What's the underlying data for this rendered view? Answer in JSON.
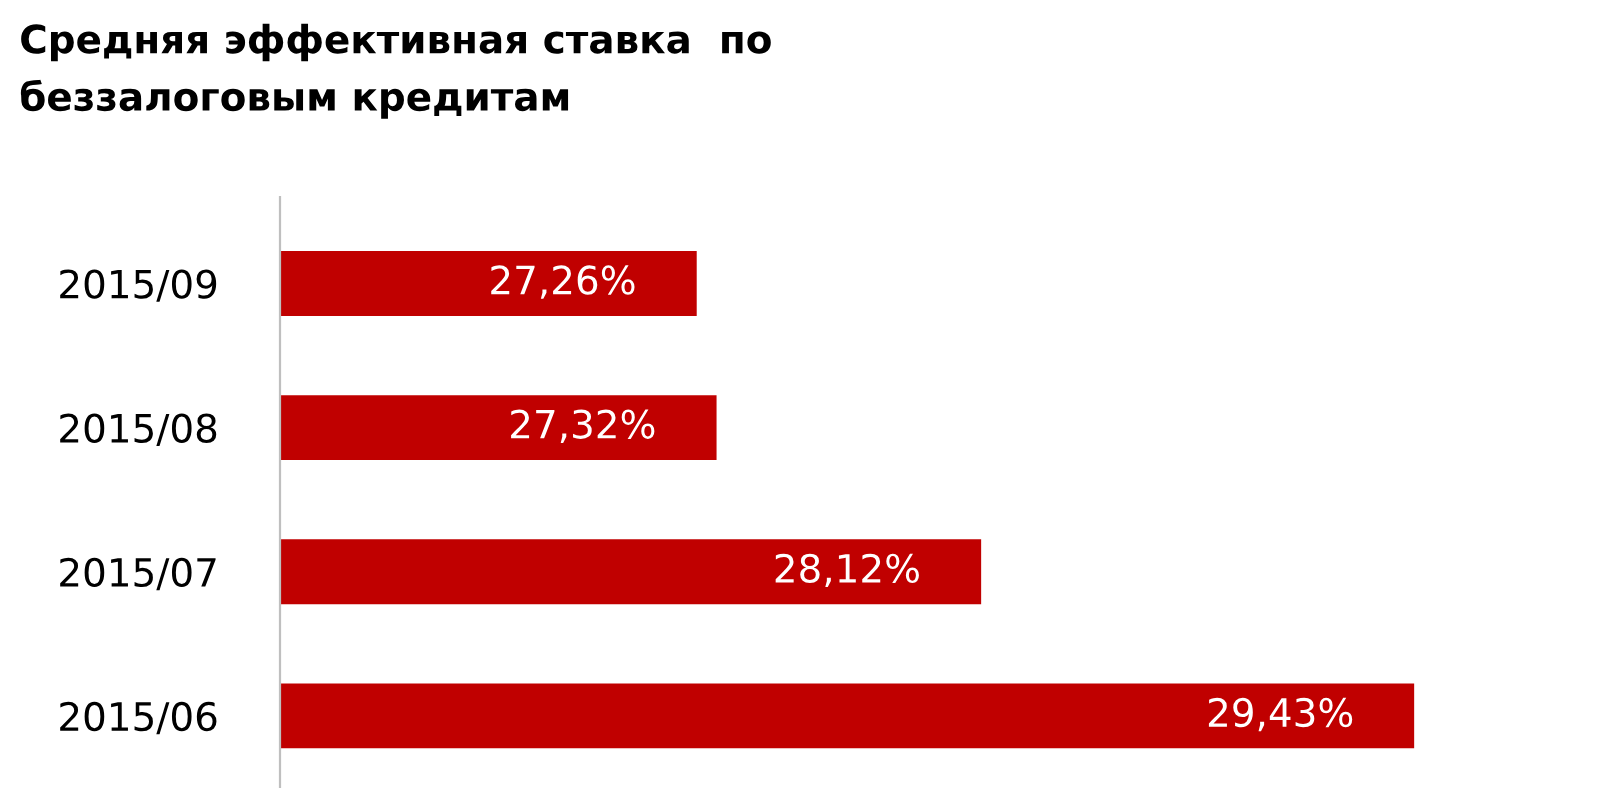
{
  "chart_data": {
    "type": "bar",
    "orientation": "horizontal",
    "title": "Средняя эффективная ставка  по\nбеззалоговым кредитам",
    "categories": [
      "2015/09",
      "2015/08",
      "2015/07",
      "2015/06"
    ],
    "values": [
      27.26,
      27.32,
      28.12,
      29.43
    ],
    "color": "#c00000",
    "value_labels": [
      "27,26%",
      "27,32%",
      "28,12%",
      "29,43%"
    ],
    "xlim": [
      26,
      29.43
    ],
    "tick_labels": "y",
    "grid": false,
    "legend": false
  }
}
